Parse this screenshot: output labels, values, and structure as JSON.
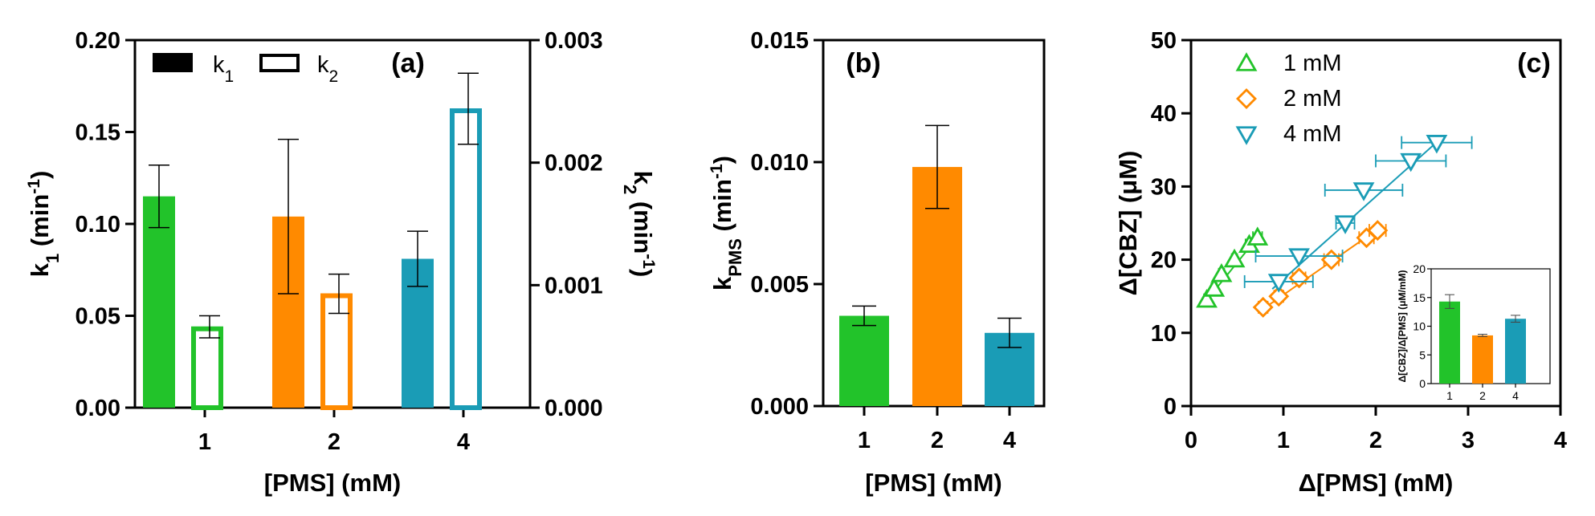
{
  "colors": {
    "green": "#22c32a",
    "orange": "#ff8a00",
    "teal": "#1a9cb6",
    "black": "#000000"
  },
  "chart_data": [
    {
      "panel": "(a)",
      "type": "bar",
      "categories": [
        "1",
        "2",
        "4"
      ],
      "xlabel": "[PMS] (mM)",
      "ylabel_left": {
        "base": "k",
        "sub": "1",
        "unit_pre": " (min",
        "sup": "-1",
        "unit_post": ")"
      },
      "ylabel_right": {
        "base": "k",
        "sub": "2",
        "unit_pre": " (min",
        "sup": "-1",
        "unit_post": ")"
      },
      "ylim_left": [
        0,
        0.2
      ],
      "ylim_right": [
        0,
        0.003
      ],
      "yticks_left": [
        "0.00",
        "0.05",
        "0.10",
        "0.15",
        "0.20"
      ],
      "yticks_right": [
        "0.000",
        "0.001",
        "0.002",
        "0.003"
      ],
      "legend": [
        {
          "base": "k",
          "sub": "1",
          "style": "filled"
        },
        {
          "base": "k",
          "sub": "2",
          "style": "open"
        }
      ],
      "series": [
        {
          "name": "k1",
          "axis": "left",
          "style": "filled",
          "values": [
            0.115,
            0.104,
            0.081
          ],
          "errors": [
            0.017,
            0.042,
            0.015
          ]
        },
        {
          "name": "k2",
          "axis": "right",
          "style": "open",
          "values": [
            0.00066,
            0.00093,
            0.00244
          ],
          "errors": [
            9e-05,
            0.00016,
            0.00029
          ]
        }
      ]
    },
    {
      "panel": "(b)",
      "type": "bar",
      "categories": [
        "1",
        "2",
        "4"
      ],
      "xlabel": "[PMS] (mM)",
      "ylabel": {
        "base": "k",
        "sub": "PMS",
        "unit_pre": " (min",
        "sup": "-1",
        "unit_post": ")"
      },
      "ylim": [
        0,
        0.015
      ],
      "yticks": [
        "0.000",
        "0.005",
        "0.010",
        "0.015"
      ],
      "values": [
        0.0037,
        0.0098,
        0.003
      ],
      "errors": [
        0.0004,
        0.0017,
        0.0006
      ]
    },
    {
      "panel": "(c)",
      "type": "scatter",
      "xlabel": "Δ[PMS] (mM)",
      "ylabel": "Δ[CBZ] (μM)",
      "xlim": [
        0,
        4
      ],
      "ylim": [
        0,
        50
      ],
      "xticks": [
        "0",
        "1",
        "2",
        "3",
        "4"
      ],
      "yticks": [
        "0",
        "10",
        "20",
        "30",
        "40",
        "50"
      ],
      "series": [
        {
          "name": "1 mM",
          "marker": "triangle-up",
          "x": [
            0.17,
            0.25,
            0.33,
            0.47,
            0.63,
            0.72
          ],
          "y": [
            14.5,
            16.0,
            18.0,
            20.0,
            22.0,
            23.0
          ],
          "xerr": [
            0.03,
            0.03,
            0.03,
            0.03,
            0.04,
            0.05
          ],
          "fit": [
            [
              0.14,
              14.0
            ],
            [
              0.75,
              23.5
            ]
          ]
        },
        {
          "name": "2 mM",
          "marker": "diamond",
          "x": [
            0.78,
            0.95,
            1.17,
            1.52,
            1.9,
            2.02
          ],
          "y": [
            13.5,
            15.0,
            17.5,
            20.0,
            23.0,
            24.0
          ],
          "xerr": [
            0.05,
            0.05,
            0.07,
            0.08,
            0.08,
            0.09
          ],
          "fit": [
            [
              0.75,
              13.0
            ],
            [
              2.06,
              24.5
            ]
          ]
        },
        {
          "name": "4 mM",
          "marker": "triangle-down",
          "x": [
            0.95,
            1.17,
            1.67,
            1.87,
            2.38,
            2.66
          ],
          "y": [
            17.0,
            20.5,
            25.0,
            29.5,
            33.5,
            36.0
          ],
          "xerr": [
            0.37,
            0.47,
            0.1,
            0.42,
            0.38,
            0.38
          ],
          "fit": [
            [
              0.88,
              16.0
            ],
            [
              2.7,
              36.5
            ]
          ]
        }
      ],
      "inset": {
        "type": "bar",
        "ylabel": "Δ[CBZ]/Δ[PMS] (μM/mM)",
        "categories": [
          "1",
          "2",
          "4"
        ],
        "ylim": [
          0,
          20
        ],
        "yticks": [
          "0",
          "5",
          "10",
          "15",
          "20"
        ],
        "values": [
          14.3,
          8.4,
          11.3
        ],
        "errors": [
          1.2,
          0.2,
          0.6
        ]
      }
    }
  ]
}
